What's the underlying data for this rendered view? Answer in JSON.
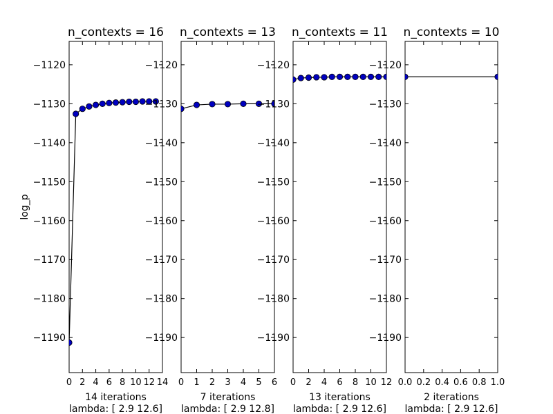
{
  "colors": {
    "background": "#ffffff",
    "marker_fill": "#0000bf",
    "line": "#000000",
    "axes": "#000000"
  },
  "ylabel": "log_p",
  "chart_data": [
    {
      "type": "line",
      "title": "n_contexts = 16",
      "xlabel": "14 iterations",
      "xlabel2": "lambda: [  2.9  12.6]",
      "ylabel": "log_p",
      "xlim": [
        0,
        14
      ],
      "ylim": [
        -1199,
        -1114
      ],
      "x_ticks": [
        0,
        2,
        4,
        6,
        8,
        10,
        12,
        14
      ],
      "x_tick_labels": [
        "0",
        "2",
        "4",
        "6",
        "8",
        "10",
        "12",
        "14"
      ],
      "y_ticks": [
        -1190,
        -1180,
        -1170,
        -1160,
        -1150,
        -1140,
        -1130,
        -1120
      ],
      "y_tick_labels": [
        "−1190",
        "−1180",
        "−1170",
        "−1160",
        "−1150",
        "−1140",
        "−1130",
        "−1120"
      ],
      "x": [
        0,
        1,
        2,
        3,
        4,
        5,
        6,
        7,
        8,
        9,
        10,
        11,
        12,
        13
      ],
      "y": [
        -1191.3,
        -1132.6,
        -1131.3,
        -1130.7,
        -1130.3,
        -1130.0,
        -1129.8,
        -1129.7,
        -1129.6,
        -1129.5,
        -1129.5,
        -1129.4,
        -1129.4,
        -1129.4
      ],
      "grid": false
    },
    {
      "type": "line",
      "title": "n_contexts = 13",
      "xlabel": "7 iterations",
      "xlabel2": "lambda: [  2.9  12.8]",
      "xlim": [
        0,
        6
      ],
      "ylim": [
        -1199,
        -1114
      ],
      "x_ticks": [
        0,
        1,
        2,
        3,
        4,
        5,
        6
      ],
      "x_tick_labels": [
        "0",
        "1",
        "2",
        "3",
        "4",
        "5",
        "6"
      ],
      "y_ticks": [
        -1190,
        -1180,
        -1170,
        -1160,
        -1150,
        -1140,
        -1130,
        -1120
      ],
      "y_tick_labels": [
        "−1190",
        "−1180",
        "−1170",
        "−1160",
        "−1150",
        "−1140",
        "−1130",
        "−1120"
      ],
      "x": [
        0,
        1,
        2,
        3,
        4,
        5,
        6
      ],
      "y": [
        -1131.3,
        -1130.3,
        -1130.1,
        -1130.1,
        -1130.0,
        -1130.0,
        -1130.0
      ],
      "grid": false
    },
    {
      "type": "line",
      "title": "n_contexts = 11",
      "xlabel": "13 iterations",
      "xlabel2": "lambda: [  2.9  12.6]",
      "xlim": [
        0,
        12
      ],
      "ylim": [
        -1199,
        -1114
      ],
      "x_ticks": [
        0,
        2,
        4,
        6,
        8,
        10,
        12
      ],
      "x_tick_labels": [
        "0",
        "2",
        "4",
        "6",
        "8",
        "10",
        "12"
      ],
      "y_ticks": [
        -1190,
        -1180,
        -1170,
        -1160,
        -1150,
        -1140,
        -1130,
        -1120
      ],
      "y_tick_labels": [
        "−1190",
        "−1180",
        "−1170",
        "−1160",
        "−1150",
        "−1140",
        "−1130",
        "−1120"
      ],
      "x": [
        0,
        1,
        2,
        3,
        4,
        5,
        6,
        7,
        8,
        9,
        10,
        11,
        12
      ],
      "y": [
        -1123.8,
        -1123.4,
        -1123.3,
        -1123.2,
        -1123.2,
        -1123.1,
        -1123.1,
        -1123.1,
        -1123.1,
        -1123.1,
        -1123.1,
        -1123.1,
        -1123.1
      ],
      "grid": false
    },
    {
      "type": "line",
      "title": "n_contexts = 10",
      "xlabel": "2 iterations",
      "xlabel2": "lambda: [  2.9  12.6]",
      "xlim": [
        0,
        1
      ],
      "ylim": [
        -1199,
        -1114
      ],
      "x_ticks": [
        0,
        0.2,
        0.4,
        0.6,
        0.8,
        1.0
      ],
      "x_tick_labels": [
        "0.0",
        "0.2",
        "0.4",
        "0.6",
        "0.8",
        "1.0"
      ],
      "y_ticks": [
        -1190,
        -1180,
        -1170,
        -1160,
        -1150,
        -1140,
        -1130,
        -1120
      ],
      "y_tick_labels": [
        "−1190",
        "−1180",
        "−1170",
        "−1160",
        "−1150",
        "−1140",
        "−1130",
        "−1120"
      ],
      "x": [
        0,
        1
      ],
      "y": [
        -1123.1,
        -1123.1
      ],
      "grid": false
    }
  ]
}
